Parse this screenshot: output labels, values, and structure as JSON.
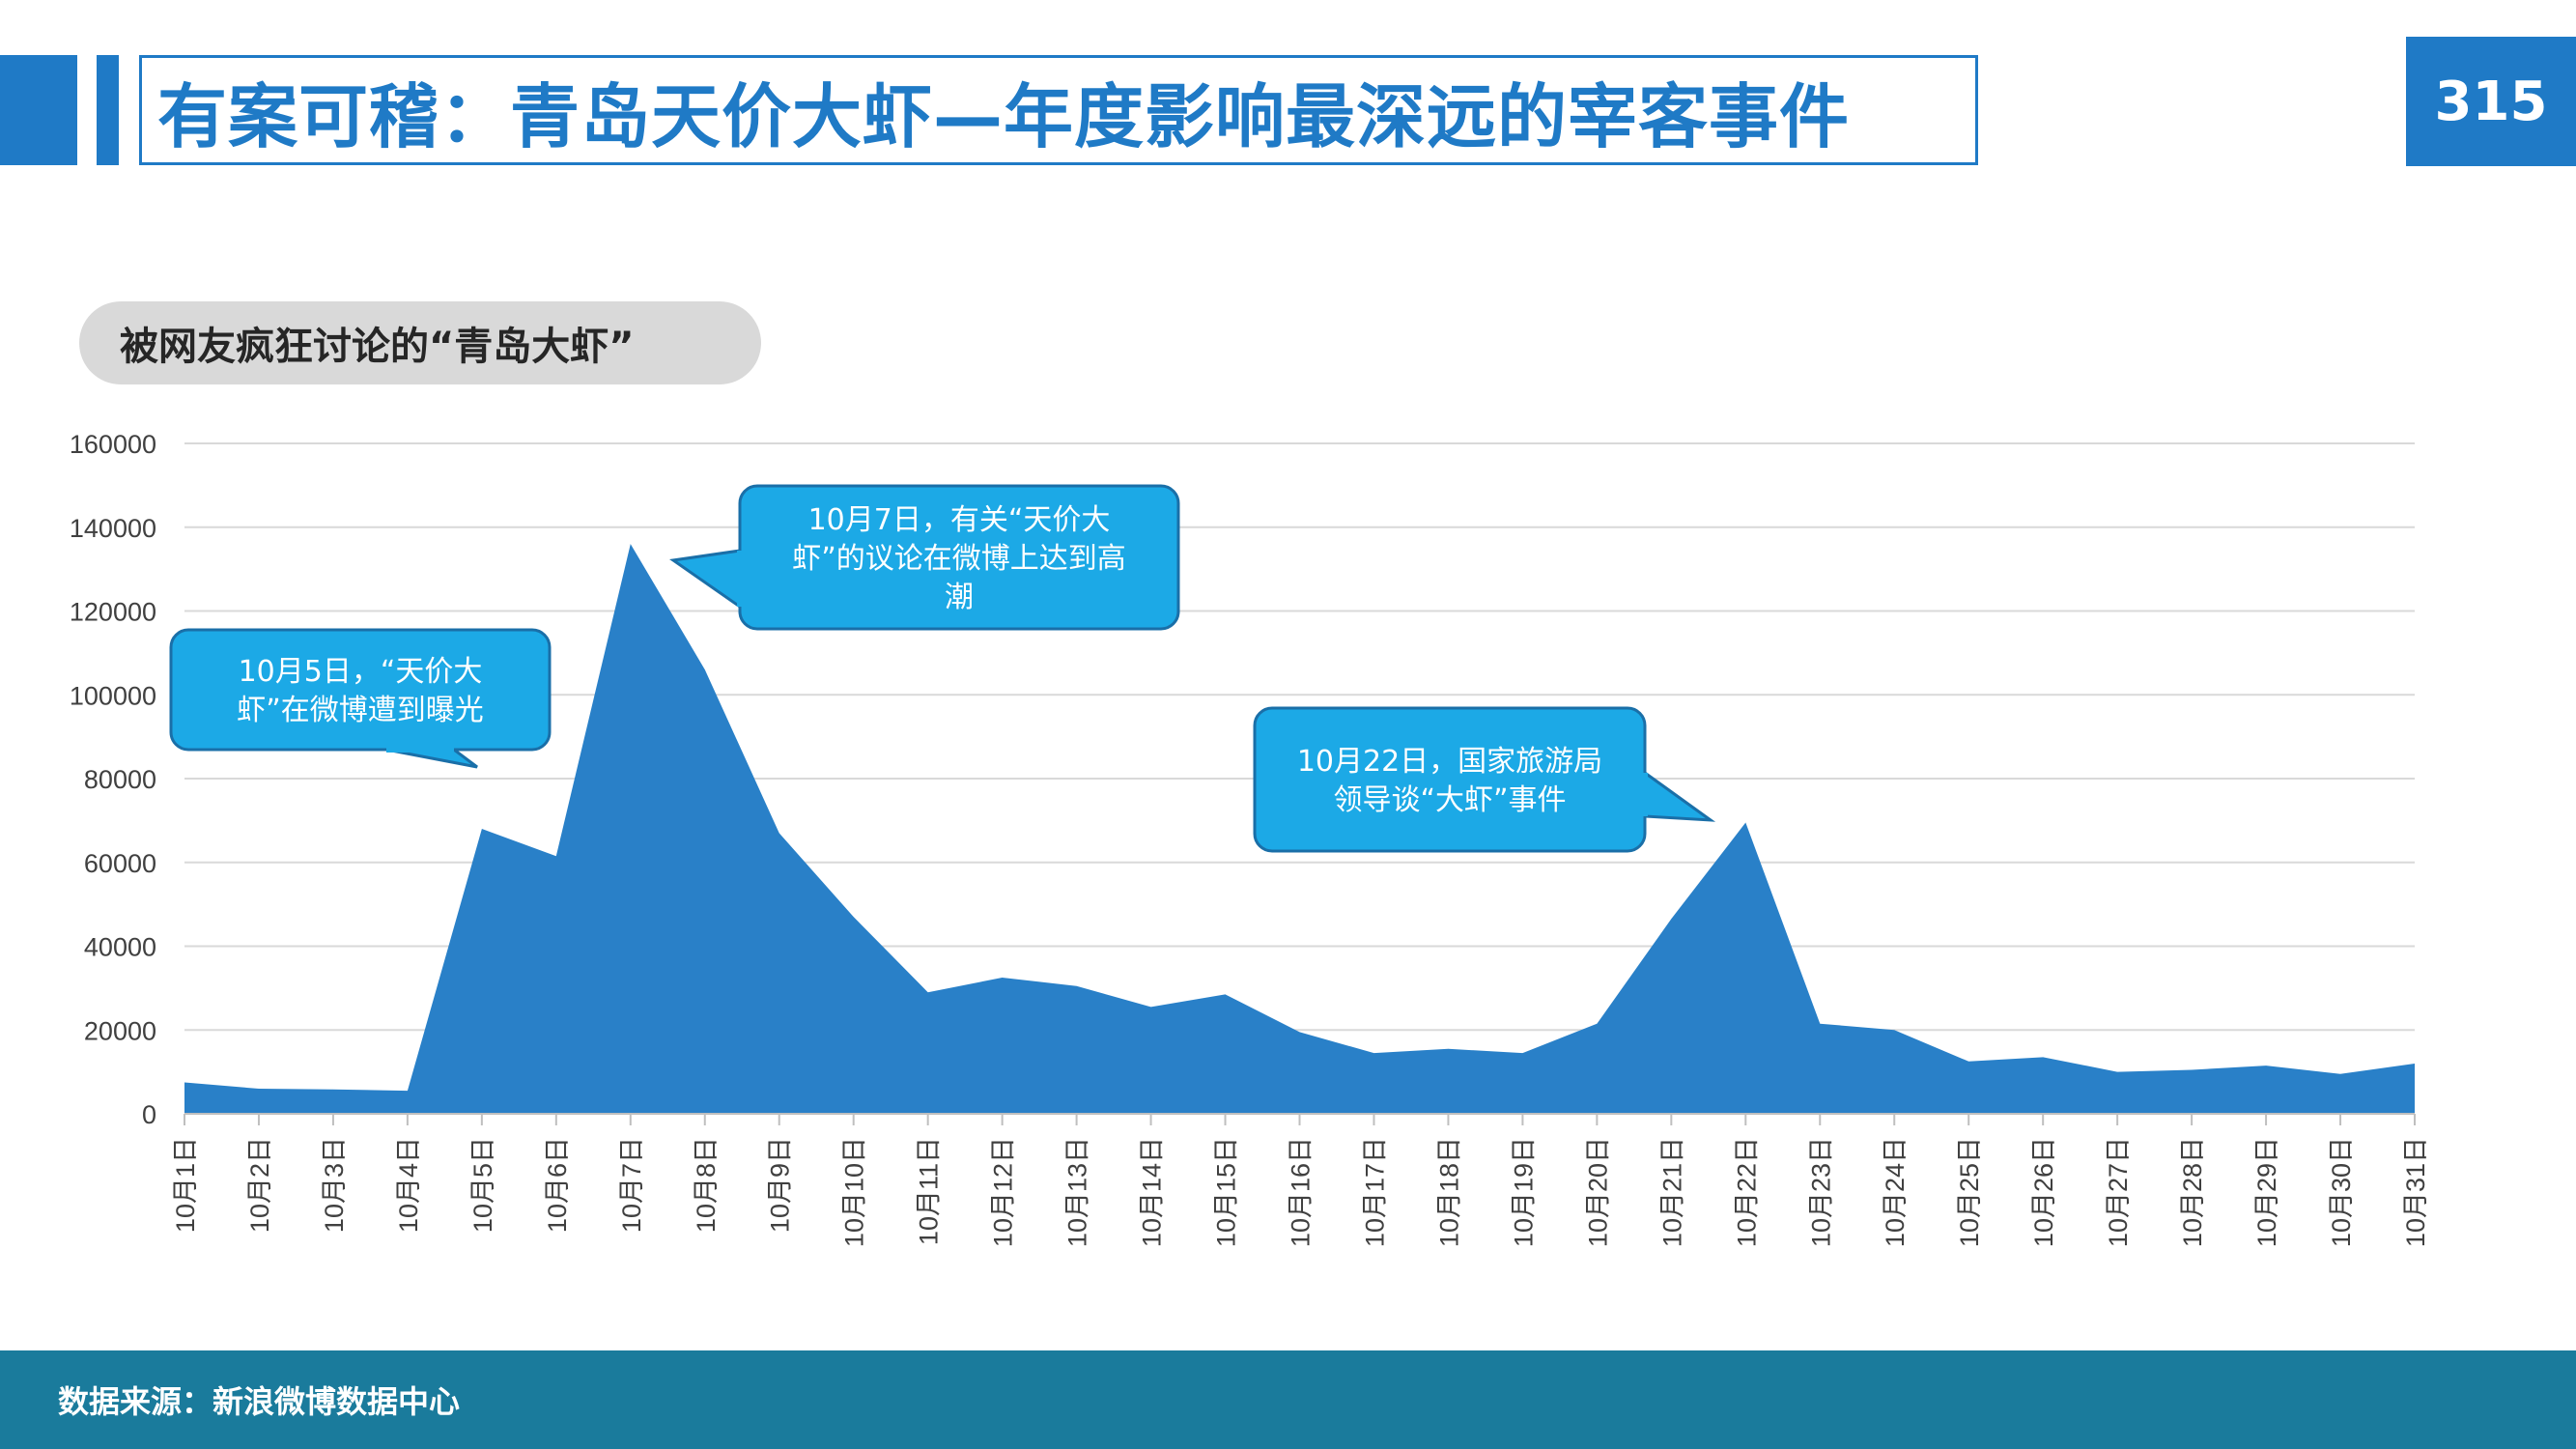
{
  "header": {
    "title": "有案可稽：青岛天价大虾—年度影响最深远的宰客事件",
    "page_number": "315"
  },
  "subtitle": "被网友疯狂讨论的“青岛大虾”",
  "footer": {
    "source": "数据来源：新浪微博数据中心"
  },
  "colors": {
    "accent": "#1f7ac6",
    "area": "#2980c8",
    "callout": "#1ca9e6",
    "footer": "#1a7b9c"
  },
  "chart_data": {
    "type": "area",
    "title": "",
    "xlabel": "",
    "ylabel": "",
    "ylim": [
      0,
      160000
    ],
    "yticks": [
      0,
      20000,
      40000,
      60000,
      80000,
      100000,
      120000,
      140000,
      160000
    ],
    "grid": true,
    "legend": "none",
    "categories": [
      "10月1日",
      "10月2日",
      "10月3日",
      "10月4日",
      "10月5日",
      "10月6日",
      "10月7日",
      "10月8日",
      "10月9日",
      "10月10日",
      "10月11日",
      "10月12日",
      "10月13日",
      "10月14日",
      "10月15日",
      "10月16日",
      "10月17日",
      "10月18日",
      "10月19日",
      "10月20日",
      "10月21日",
      "10月22日",
      "10月23日",
      "10月24日",
      "10月25日",
      "10月26日",
      "10月27日",
      "10月28日",
      "10月29日",
      "10月30日",
      "10月31日"
    ],
    "values": [
      7500,
      6000,
      5800,
      5500,
      68000,
      61500,
      136000,
      106000,
      67000,
      47000,
      29000,
      32500,
      30500,
      25500,
      28500,
      19500,
      14500,
      15500,
      14500,
      21500,
      46500,
      69500,
      21500,
      20000,
      12500,
      13500,
      10000,
      10500,
      11500,
      9500,
      12000
    ],
    "annotations": [
      {
        "text": "10月5日，“天价大虾”在微博遭到曝光",
        "target": "10月5日"
      },
      {
        "text": "10月7日，有关“天价大虾”的议论在微博上达到高潮",
        "target": "10月7日"
      },
      {
        "text": "10月22日，国家旅游局领导谈“大虾”事件",
        "target": "10月22日"
      }
    ]
  }
}
